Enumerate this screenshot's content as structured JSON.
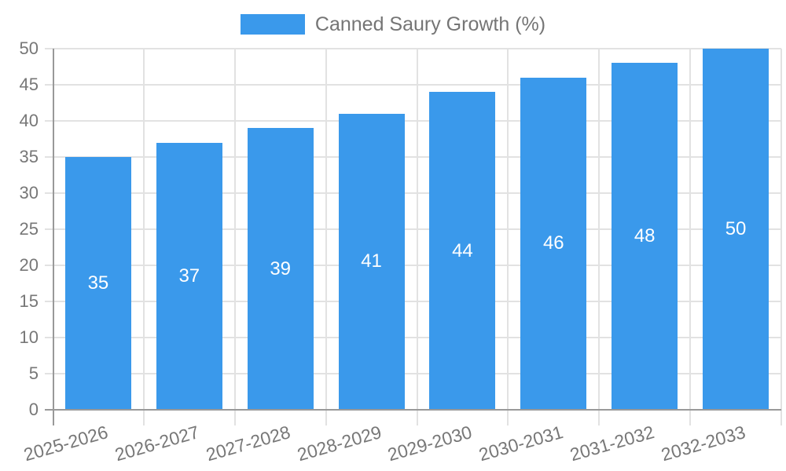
{
  "chart_data": {
    "type": "bar",
    "title": "",
    "legend": "Canned Saury Growth (%)",
    "legend_position": "top",
    "categories": [
      "2025-2026",
      "2026-2027",
      "2027-2028",
      "2028-2029",
      "2029-2030",
      "2030-2031",
      "2031-2032",
      "2032-2033"
    ],
    "values": [
      35,
      37,
      39,
      41,
      44,
      46,
      48,
      50
    ],
    "xlabel": "",
    "ylabel": "",
    "ylim": [
      0,
      50
    ],
    "y_ticks": [
      0,
      5,
      10,
      15,
      20,
      25,
      30,
      35,
      40,
      45,
      50
    ],
    "grid": true,
    "value_labels_position": "center-inside-bars"
  },
  "theme": {
    "bar_color": "#3A99EB",
    "grid_color": "#E2E2E2",
    "axis_color": "#999999",
    "tick_label_color": "#777777",
    "legend_text_color": "#757575",
    "value_label_color": "#FFFFFF",
    "background": "#FFFFFF"
  }
}
